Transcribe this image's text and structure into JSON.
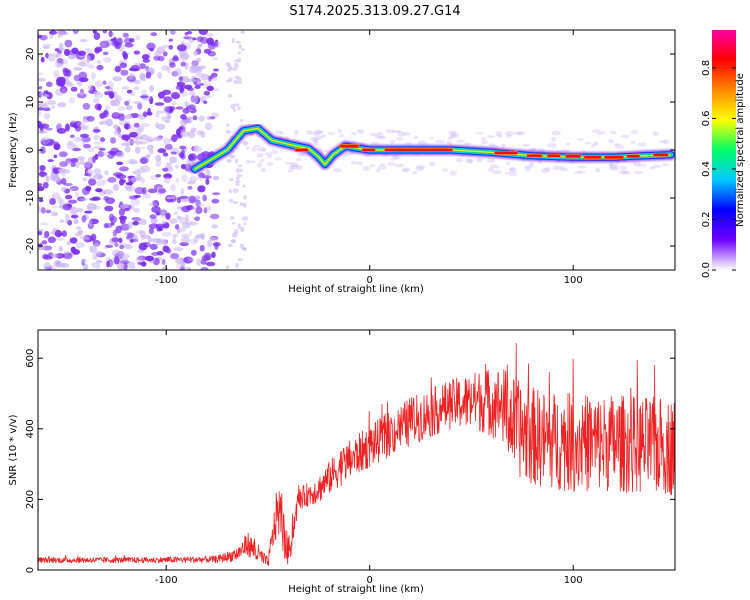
{
  "title": "S174.2025.313.09.27.G14",
  "colors": {
    "snr_line": "#ee2222",
    "frame": "#000000",
    "background": "#ffffff",
    "trace_center": "#ee1111",
    "trace_halo": "#33cc66",
    "trace_outer": "#00ccee",
    "noise": "#7a2cf0",
    "noise_light": "#c9b0f5"
  },
  "colormap": {
    "label": "Normalized spectral amplitude",
    "range": [
      0.0,
      0.95
    ],
    "ticks": [
      "0.0",
      "0.2",
      "0.4",
      "0.6",
      "0.8"
    ],
    "tick_values": [
      0.0,
      0.2,
      0.4,
      0.6,
      0.8
    ],
    "stops": [
      "#ffffff",
      "#7000ff",
      "#0000ff",
      "#00c8ff",
      "#00ff66",
      "#ffff00",
      "#ff8800",
      "#ff0000",
      "#ff00aa"
    ]
  },
  "chart_data": [
    {
      "type": "heatmap",
      "name": "spectrogram",
      "xlabel": "Height of straight line (km)",
      "ylabel": "Frequency (Hz)",
      "xlim": [
        -163,
        150
      ],
      "ylim": [
        -25,
        25
      ],
      "xticks": [
        -100,
        0,
        100
      ],
      "xtick_labels": [
        "-100",
        "0",
        "100"
      ],
      "yticks": [
        -20,
        -10,
        0,
        10,
        20
      ],
      "ytick_labels": [
        "-20",
        "-10",
        "0",
        "10",
        "20"
      ],
      "noise_region_x": [
        -163,
        -75
      ],
      "trace_path": [
        {
          "x": -86,
          "y": -4
        },
        {
          "x": -78,
          "y": -2
        },
        {
          "x": -70,
          "y": 0
        },
        {
          "x": -62,
          "y": 4
        },
        {
          "x": -55,
          "y": 4.5
        },
        {
          "x": -48,
          "y": 2
        },
        {
          "x": -38,
          "y": 1
        },
        {
          "x": -30,
          "y": 0.3
        },
        {
          "x": -25,
          "y": -1.5
        },
        {
          "x": -22,
          "y": -3
        },
        {
          "x": -18,
          "y": -1
        },
        {
          "x": -12,
          "y": 0.8
        },
        {
          "x": -5,
          "y": 0.3
        },
        {
          "x": 0,
          "y": 0
        },
        {
          "x": 40,
          "y": 0
        },
        {
          "x": 60,
          "y": -0.5
        },
        {
          "x": 80,
          "y": -1.2
        },
        {
          "x": 100,
          "y": -1.5
        },
        {
          "x": 120,
          "y": -1.5
        },
        {
          "x": 135,
          "y": -1.2
        },
        {
          "x": 148,
          "y": -1
        }
      ],
      "strong_segments": [
        {
          "x0": -36,
          "x1": -31,
          "y": 0
        },
        {
          "x0": -14,
          "x1": -6,
          "y": 0.8
        },
        {
          "x0": -3,
          "x1": 2,
          "y": 0
        },
        {
          "x0": 8,
          "x1": 40,
          "y": 0
        },
        {
          "x0": 62,
          "x1": 72,
          "y": -0.6
        },
        {
          "x0": 78,
          "x1": 84,
          "y": -1.2
        },
        {
          "x0": 88,
          "x1": 93,
          "y": -1.2
        },
        {
          "x0": 97,
          "x1": 103,
          "y": -1.3
        },
        {
          "x0": 106,
          "x1": 113,
          "y": -1.5
        },
        {
          "x0": 116,
          "x1": 124,
          "y": -1.5
        },
        {
          "x0": 127,
          "x1": 132,
          "y": -1.3
        },
        {
          "x0": 140,
          "x1": 146,
          "y": -1
        }
      ]
    },
    {
      "type": "line",
      "name": "snr",
      "xlabel": "Height of straight line (km)",
      "ylabel": "SNR (10 * v/v)",
      "xlim": [
        -163,
        150
      ],
      "ylim": [
        0,
        680
      ],
      "xticks": [
        -100,
        0,
        100
      ],
      "xtick_labels": [
        "-100",
        "0",
        "100"
      ],
      "yticks": [
        0,
        200,
        400,
        600
      ],
      "ytick_labels": [
        "0",
        "200",
        "400",
        "600"
      ],
      "series": [
        {
          "name": "SNR",
          "envelope_x": [
            -163,
            -110,
            -75,
            -65,
            -60,
            -55,
            -50,
            -45,
            -40,
            -35,
            -25,
            -15,
            0,
            20,
            40,
            55,
            65,
            70,
            75,
            85,
            100,
            120,
            140,
            150
          ],
          "envelope_mean": [
            28,
            28,
            30,
            45,
            75,
            45,
            20,
            180,
            40,
            200,
            230,
            290,
            350,
            420,
            470,
            480,
            470,
            420,
            390,
            370,
            360,
            360,
            350,
            350
          ],
          "envelope_spread": [
            8,
            8,
            10,
            20,
            35,
            30,
            15,
            80,
            50,
            30,
            40,
            55,
            60,
            70,
            70,
            90,
            110,
            130,
            140,
            140,
            140,
            140,
            140,
            140
          ]
        }
      ]
    }
  ]
}
